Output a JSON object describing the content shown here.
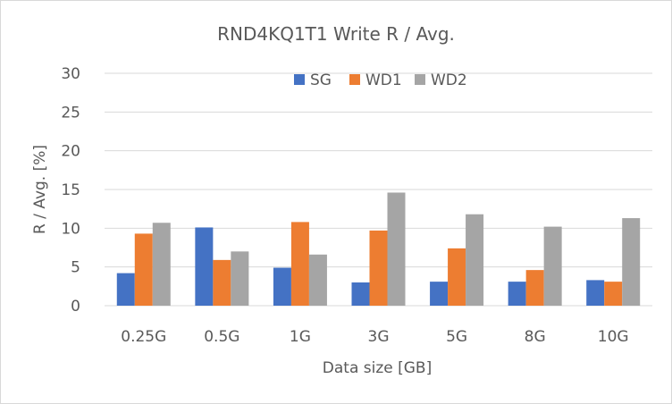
{
  "chart_data": {
    "type": "bar",
    "title": "RND4KQ1T1 Write R / Avg.",
    "xlabel": "Data size [GB]",
    "ylabel": "R / Avg. [%]",
    "ylim": [
      0,
      30
    ],
    "yticks": [
      0,
      5,
      10,
      15,
      20,
      25,
      30
    ],
    "grid": true,
    "legend_position": "top",
    "categories": [
      "0.25G",
      "0.5G",
      "1G",
      "3G",
      "5G",
      "8G",
      "10G"
    ],
    "series": [
      {
        "name": "SG",
        "color": "#4472c4",
        "values": [
          4.2,
          10.1,
          4.9,
          3.0,
          3.1,
          3.1,
          3.3
        ]
      },
      {
        "name": "WD1",
        "color": "#ed7d31",
        "values": [
          9.3,
          5.9,
          10.8,
          9.7,
          7.4,
          4.6,
          3.1
        ]
      },
      {
        "name": "WD2",
        "color": "#a5a5a5",
        "values": [
          10.7,
          7.0,
          6.6,
          14.6,
          11.8,
          10.2,
          11.3
        ]
      }
    ],
    "gridline_color": "#d9d9d9"
  }
}
